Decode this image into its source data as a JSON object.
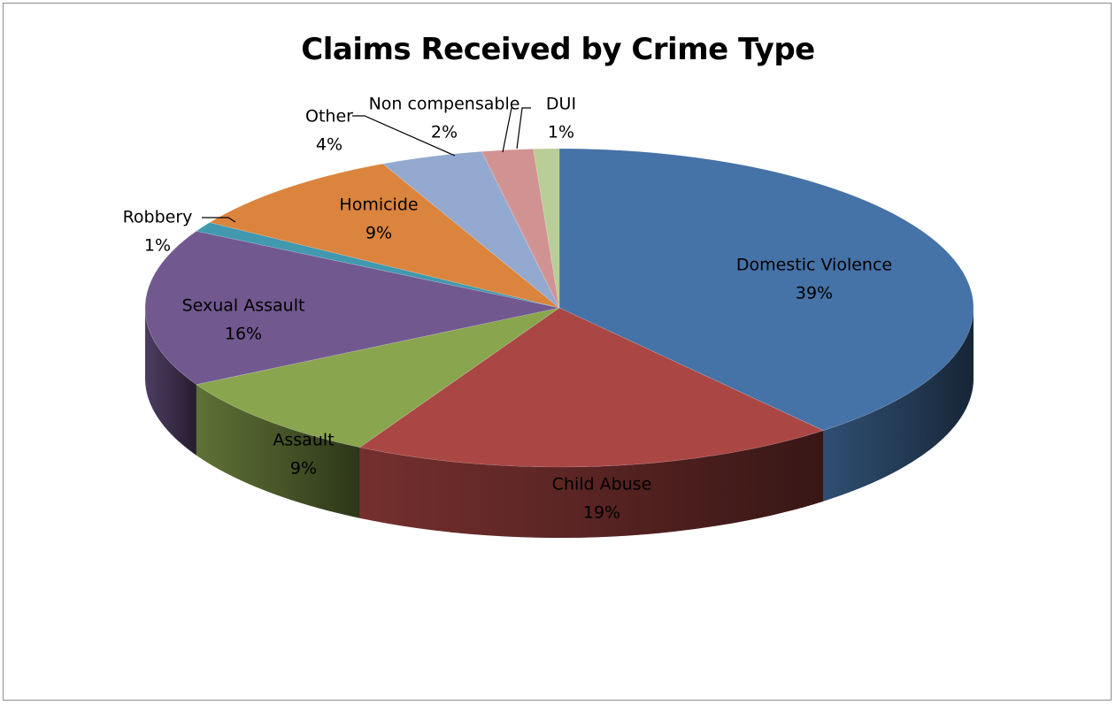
{
  "chart_data": {
    "type": "pie",
    "title": "Claims Received by Crime Type",
    "three_d": true,
    "legend": "none",
    "slices": [
      {
        "label": "Domestic Violence",
        "value": 39,
        "value_label": "39%",
        "color": "#4572a7"
      },
      {
        "label": "Child Abuse",
        "value": 19,
        "value_label": "19%",
        "color": "#aa4643"
      },
      {
        "label": "Assault",
        "value": 9,
        "value_label": "9%",
        "color": "#89a54e"
      },
      {
        "label": "Sexual Assault",
        "value": 16,
        "value_label": "16%",
        "color": "#71588f"
      },
      {
        "label": "Robbery",
        "value": 1,
        "value_label": "1%",
        "color": "#4198af"
      },
      {
        "label": "Homicide",
        "value": 9,
        "value_label": "9%",
        "color": "#db843d"
      },
      {
        "label": "Other",
        "value": 4,
        "value_label": "4%",
        "color": "#93a9cf"
      },
      {
        "label": "Non compensable",
        "value": 2,
        "value_label": "2%",
        "color": "#d19392"
      },
      {
        "label": "DUI",
        "value": 1,
        "value_label": "1%",
        "color": "#b9cd96"
      }
    ]
  }
}
